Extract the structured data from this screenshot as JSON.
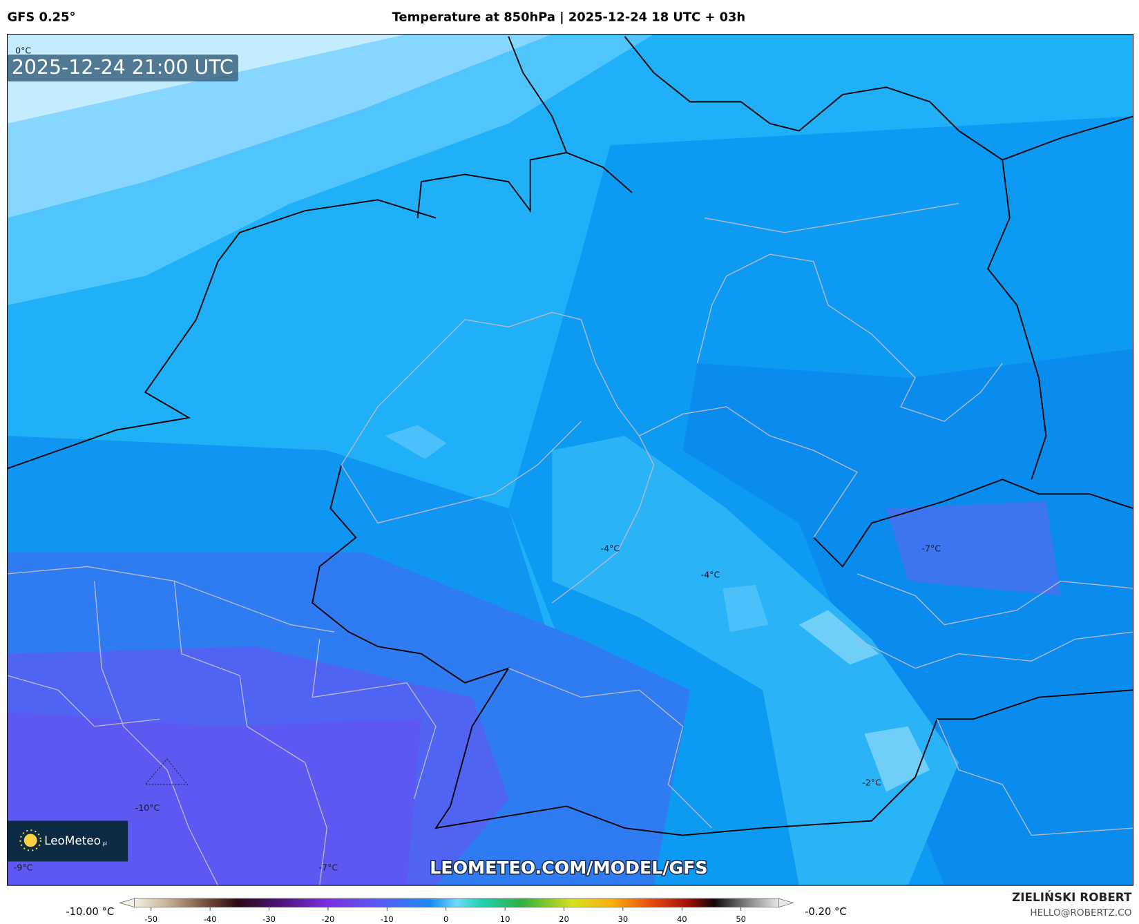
{
  "header": {
    "model": "GFS 0.25°",
    "title": "Temperature at 850hPa | 2025-12-24 18 UTC + 03h"
  },
  "map": {
    "valid_time": "2025-12-24 21:00 UTC",
    "contour_labels": [
      "0°C",
      "-4°C",
      "-4°C",
      "-7°C",
      "-2°C",
      "-10°C",
      "-9°C",
      "-7°C"
    ],
    "watermark": "LEOMETEO.COM/MODEL/GFS",
    "logo": "LeoMeteo",
    "logo_suffix": "pl"
  },
  "colorbar": {
    "min_label": "-10.00 °C",
    "max_label": "-0.20 °C",
    "ticks": [
      -50,
      -40,
      -30,
      -20,
      -10,
      0,
      10,
      20,
      30,
      40,
      50
    ]
  },
  "credit": {
    "author": "ZIELIŃSKI ROBERT",
    "email": "HELLO@ROBERTZ.CO"
  }
}
